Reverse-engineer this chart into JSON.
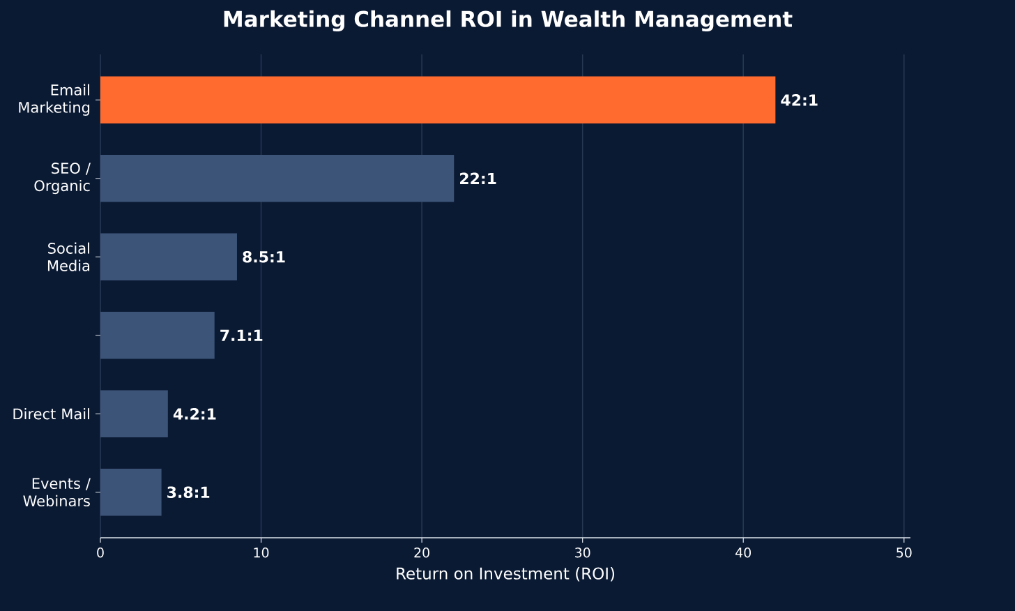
{
  "chart_data": {
    "type": "bar",
    "orientation": "horizontal",
    "title": "Marketing Channel ROI in Wealth Management",
    "xlabel": "Return on Investment (ROI)",
    "categories": [
      "Email Marketing",
      "SEO / Organic",
      "Social Media",
      null,
      "Direct Mail",
      "Events / Webinars"
    ],
    "values": [
      42,
      22,
      8.5,
      7.1,
      4.2,
      3.8
    ],
    "value_labels": [
      "42:1",
      "22:1",
      "8.5:1",
      "7.1:1",
      "4.2:1",
      "3.8:1"
    ],
    "colors": [
      "#ff6b2f",
      "#3d5479",
      "#3d5479",
      "#3d5479",
      "#3d5479",
      "#3d5479"
    ],
    "xlim": [
      0,
      50.4
    ],
    "xticks": [
      0,
      10,
      20,
      30,
      40,
      50
    ],
    "grid": "x"
  }
}
